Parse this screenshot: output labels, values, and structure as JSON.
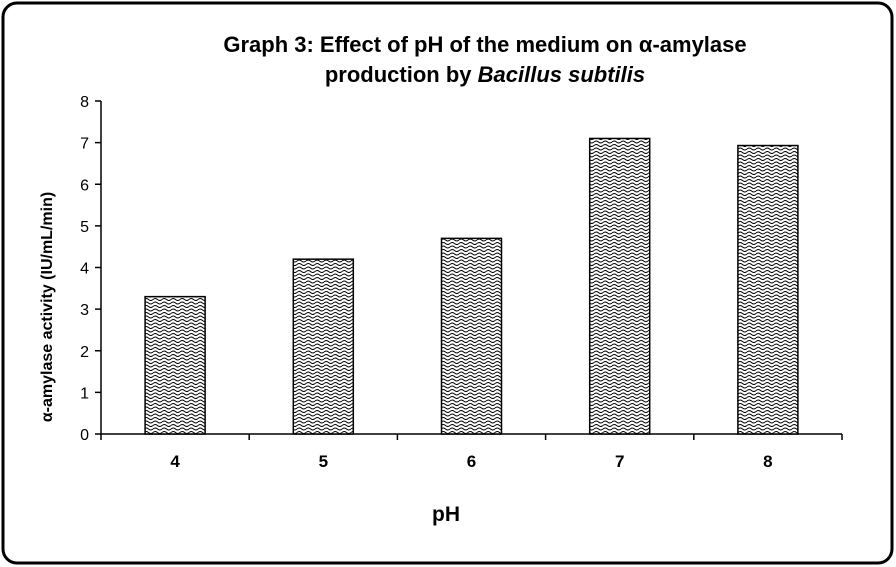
{
  "chart_data": {
    "type": "bar",
    "title_line1": "Graph 3: Effect  of  pH of the medium on α-amylase",
    "title_line2_prefix": "production by ",
    "title_line2_italic": "Bacillus subtilis",
    "xlabel": "pH",
    "ylabel": "α-amylase activity (IU/mL/min)",
    "categories": [
      "4",
      "5",
      "6",
      "7",
      "8"
    ],
    "values": [
      3.3,
      4.2,
      4.7,
      7.1,
      6.93
    ],
    "ylim": [
      0,
      8
    ],
    "yticks": [
      "0",
      "1",
      "2",
      "3",
      "4",
      "5",
      "6",
      "7",
      "8"
    ],
    "grid": false,
    "legend": "none",
    "bar_fill": "crosshatch-wave pattern",
    "colors": {
      "bar_stroke": "#000000",
      "pattern": "#000000",
      "background": "#ffffff"
    }
  }
}
